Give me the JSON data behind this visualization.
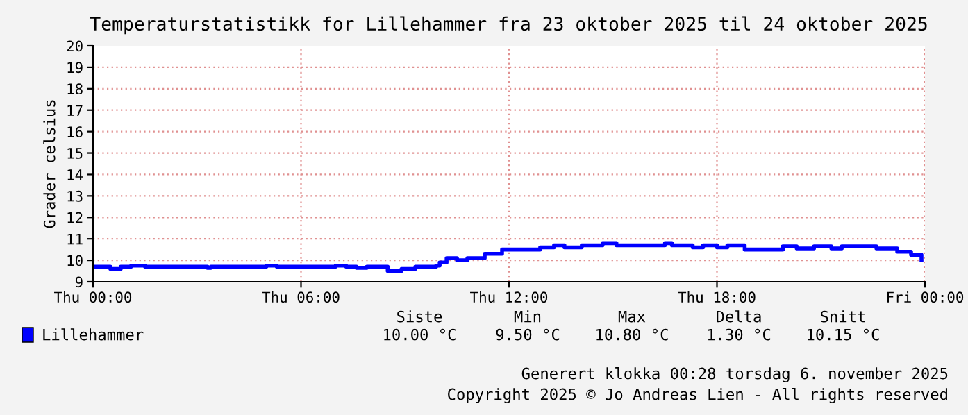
{
  "chart_data": {
    "type": "step",
    "title": "Temperaturstatistikk for Lillehammer fra 23 oktober 2025 til 24 oktober 2025",
    "ylabel": "Grader celsius",
    "series": [
      {
        "name": "Lillehammer",
        "color": "#0000ff",
        "x": [
          "2025-10-23T00:00",
          "2025-10-23T00:30",
          "2025-10-23T00:48",
          "2025-10-23T01:06",
          "2025-10-23T01:30",
          "2025-10-23T03:18",
          "2025-10-23T03:24",
          "2025-10-23T05:00",
          "2025-10-23T05:18",
          "2025-10-23T07:00",
          "2025-10-23T07:18",
          "2025-10-23T07:36",
          "2025-10-23T07:54",
          "2025-10-23T08:30",
          "2025-10-23T08:54",
          "2025-10-23T09:18",
          "2025-10-23T09:54",
          "2025-10-23T10:00",
          "2025-10-23T10:12",
          "2025-10-23T10:30",
          "2025-10-23T10:48",
          "2025-10-23T11:18",
          "2025-10-23T11:48",
          "2025-10-23T12:54",
          "2025-10-23T13:18",
          "2025-10-23T13:36",
          "2025-10-23T14:06",
          "2025-10-23T14:42",
          "2025-10-23T15:06",
          "2025-10-23T16:30",
          "2025-10-23T16:42",
          "2025-10-23T17:18",
          "2025-10-23T17:36",
          "2025-10-23T18:00",
          "2025-10-23T18:18",
          "2025-10-23T18:48",
          "2025-10-23T19:54",
          "2025-10-23T20:18",
          "2025-10-23T20:48",
          "2025-10-23T21:18",
          "2025-10-23T21:36",
          "2025-10-23T22:36",
          "2025-10-23T23:12",
          "2025-10-23T23:36",
          "2025-10-23T23:54"
        ],
        "values": [
          9.7,
          9.6,
          9.7,
          9.75,
          9.7,
          9.65,
          9.7,
          9.75,
          9.7,
          9.75,
          9.7,
          9.65,
          9.7,
          9.5,
          9.6,
          9.7,
          9.75,
          9.9,
          10.1,
          10.0,
          10.1,
          10.3,
          10.5,
          10.6,
          10.7,
          10.6,
          10.7,
          10.8,
          10.7,
          10.8,
          10.7,
          10.6,
          10.7,
          10.6,
          10.7,
          10.5,
          10.65,
          10.55,
          10.65,
          10.55,
          10.65,
          10.55,
          10.4,
          10.25,
          10.0
        ]
      }
    ],
    "xlim": [
      "2025-10-23T00:00",
      "2025-10-24T00:00"
    ],
    "xticks": [
      {
        "value": "2025-10-23T00:00",
        "label": "Thu 00:00"
      },
      {
        "value": "2025-10-23T06:00",
        "label": "Thu 06:00"
      },
      {
        "value": "2025-10-23T12:00",
        "label": "Thu 12:00"
      },
      {
        "value": "2025-10-23T18:00",
        "label": "Thu 18:00"
      },
      {
        "value": "2025-10-24T00:00",
        "label": "Fri 00:00"
      }
    ],
    "ylim": [
      9,
      20
    ],
    "yticks": [
      9,
      10,
      11,
      12,
      13,
      14,
      15,
      16,
      17,
      18,
      19,
      20
    ],
    "grid": true,
    "legend": "bottom left",
    "annotations": [
      "Siste",
      "Min",
      "Max",
      "Delta",
      "Snitt",
      "10.00 °C",
      "9.50 °C",
      "10.80 °C",
      "1.30 °C",
      "10.15 °C",
      "Generert klokka 00:28 torsdag 6. november 2025",
      "Copyright 2025 © Jo Andreas Lien - All rights reserved"
    ]
  }
}
